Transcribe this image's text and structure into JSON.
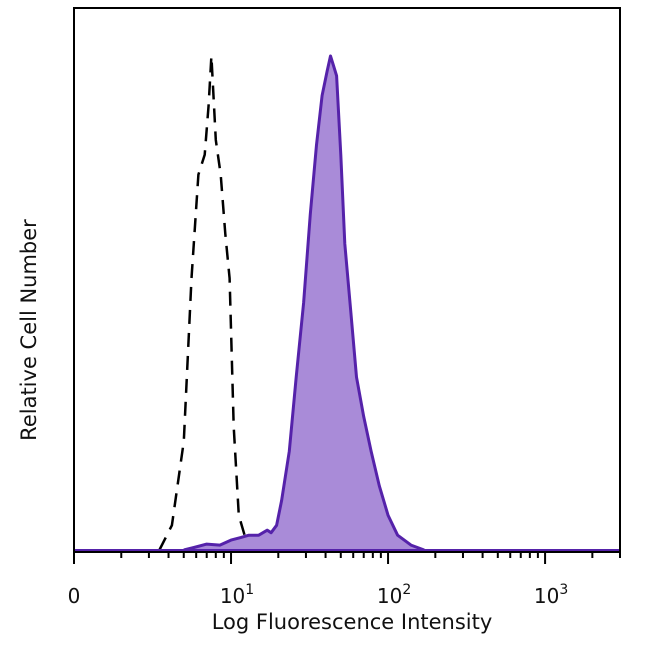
{
  "chart_data": {
    "type": "area",
    "title": "",
    "xlabel": "Log Fluorescence Intensity",
    "ylabel": "Relative Cell Number",
    "x_scale": "log",
    "xlim": [
      1,
      3000
    ],
    "ylim": [
      0,
      1.0
    ],
    "x_ticks": [
      {
        "value": 1,
        "base": "0",
        "exp": ""
      },
      {
        "value": 10,
        "base": "10",
        "exp": "1"
      },
      {
        "value": 100,
        "base": "10",
        "exp": "2"
      },
      {
        "value": 1000,
        "base": "10",
        "exp": "3"
      }
    ],
    "grid": false,
    "legend": "none",
    "series": [
      {
        "style": "dashed",
        "fill": "none",
        "color": "#000000",
        "x": [
          3.5,
          4.2,
          5.0,
          5.6,
          6.2,
          6.8,
          7.2,
          7.5,
          8.0,
          8.6,
          9.2,
          9.8,
          10.4,
          11.2,
          12.2,
          13.0
        ],
        "y": [
          0.0,
          0.05,
          0.22,
          0.55,
          0.76,
          0.8,
          0.9,
          1.0,
          0.83,
          0.76,
          0.64,
          0.55,
          0.25,
          0.07,
          0.03,
          0.0
        ]
      },
      {
        "style": "solid",
        "fill": "#a98bd8",
        "color": "#5522aa",
        "x": [
          5.0,
          5.8,
          7.0,
          8.5,
          10.0,
          11.5,
          13.0,
          15.0,
          17.0,
          18.0,
          19.5,
          21.0,
          23.5,
          26.0,
          29.0,
          32.0,
          35.0,
          38.0,
          41.0,
          43.0,
          45.0,
          47.0,
          50.0,
          53.0,
          58.0,
          63.0,
          70.0,
          78.0,
          88.0,
          100.0,
          115.0,
          140.0,
          170.0
        ],
        "y": [
          0.0,
          0.005,
          0.012,
          0.01,
          0.02,
          0.025,
          0.03,
          0.03,
          0.04,
          0.035,
          0.05,
          0.1,
          0.2,
          0.35,
          0.5,
          0.68,
          0.82,
          0.92,
          0.97,
          1.0,
          0.98,
          0.96,
          0.8,
          0.62,
          0.48,
          0.35,
          0.27,
          0.2,
          0.13,
          0.07,
          0.03,
          0.01,
          0.0
        ]
      }
    ]
  }
}
